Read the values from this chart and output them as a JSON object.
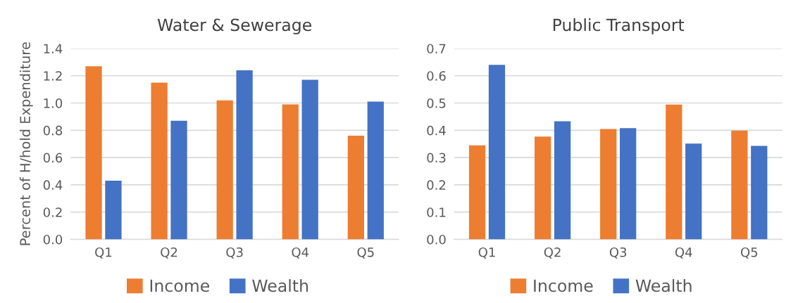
{
  "chart_data": [
    {
      "type": "bar",
      "title": "Water & Sewerage",
      "ylabel": "Percent of H/hold Expenditure",
      "categories": [
        "Q1",
        "Q2",
        "Q3",
        "Q4",
        "Q5"
      ],
      "series": [
        {
          "name": "Income",
          "color": "#ed7d31",
          "values": [
            1.27,
            1.15,
            1.02,
            0.99,
            0.76
          ]
        },
        {
          "name": "Wealth",
          "color": "#4472c4",
          "values": [
            0.43,
            0.87,
            1.24,
            1.17,
            1.01
          ]
        }
      ],
      "ylim": [
        0,
        1.4
      ],
      "yticks": [
        {
          "value": 0,
          "label": "0.0"
        },
        {
          "value": 0.2,
          "label": "0.2"
        },
        {
          "value": 0.4,
          "label": "0.4"
        },
        {
          "value": 0.6,
          "label": "0.6"
        },
        {
          "value": 0.8,
          "label": "0.8"
        },
        {
          "value": 1.0,
          "label": "1.0"
        },
        {
          "value": 1.2,
          "label": "1.2"
        },
        {
          "value": 1.4,
          "label": "1.4"
        }
      ],
      "grid": "y",
      "legend": "bottom"
    },
    {
      "type": "bar",
      "title": "Public Transport",
      "categories": [
        "Q1",
        "Q2",
        "Q3",
        "Q4",
        "Q5"
      ],
      "series": [
        {
          "name": "Income",
          "color": "#ed7d31",
          "values": [
            0.345,
            0.377,
            0.405,
            0.494,
            0.399
          ]
        },
        {
          "name": "Wealth",
          "color": "#4472c4",
          "values": [
            0.64,
            0.433,
            0.408,
            0.351,
            0.343
          ]
        }
      ],
      "ylim": [
        0,
        0.7
      ],
      "yticks": [
        {
          "value": 0,
          "label": "0.0"
        },
        {
          "value": 0.1,
          "label": "0.1"
        },
        {
          "value": 0.2,
          "label": "0.2"
        },
        {
          "value": 0.3,
          "label": "0.3"
        },
        {
          "value": 0.4,
          "label": "0.4"
        },
        {
          "value": 0.5,
          "label": "0.5"
        },
        {
          "value": 0.6,
          "label": "0.6"
        },
        {
          "value": 0.7,
          "label": "0.7"
        }
      ],
      "grid": "y",
      "legend": "bottom"
    }
  ]
}
